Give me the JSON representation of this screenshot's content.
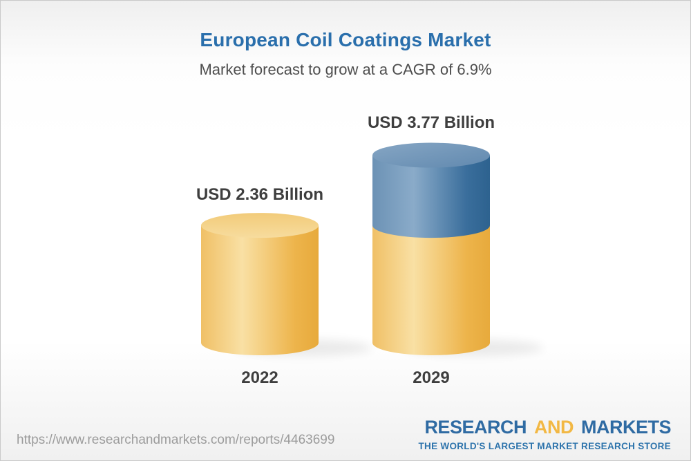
{
  "header": {
    "title": "European Coil Coatings Market",
    "subtitle": "Market forecast to grow at a CAGR of 6.9%"
  },
  "chart_data": {
    "type": "bar",
    "subtype": "3d-cylinder",
    "title": "European Coil Coatings Market",
    "subtitle": "Market forecast to grow at a CAGR of 6.9%",
    "unit": "USD Billion",
    "cagr_percent": 6.9,
    "categories": [
      "2022",
      "2029"
    ],
    "values": [
      2.36,
      3.77
    ],
    "value_labels": [
      "USD 2.36 Billion",
      "USD 3.77 Billion"
    ],
    "baseline_value": 2.36,
    "legend": false,
    "axes_shown": false,
    "colors": {
      "base_segment_yellow": "#F2C367",
      "growth_segment_blue": "#4E7FAE",
      "value_label_text": "#3E3E3E",
      "title_text": "#2A6FAC",
      "subtitle_text": "#4E4E4E"
    },
    "notes": "2029 cylinder is stacked: yellow base equals the 2022 value, blue upper segment is growth above the 2022 baseline."
  },
  "footer": {
    "url": "https://www.researchandmarkets.com/reports/4463699",
    "logo": {
      "word1": "RESEARCH",
      "word2": "AND",
      "word3": "MARKETS",
      "tagline": "THE WORLD'S LARGEST MARKET RESEARCH STORE",
      "brand_blue": "#2F6BA3",
      "brand_yellow": "#F2B844"
    }
  }
}
